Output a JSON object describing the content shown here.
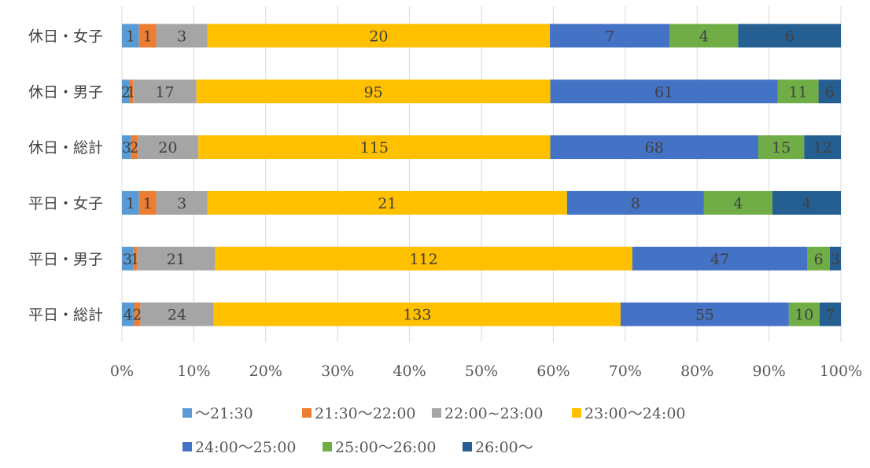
{
  "chart_data": {
    "type": "bar",
    "orientation": "horizontal",
    "stacked": "percent",
    "categories": [
      "休日・女子",
      "休日・男子",
      "休日・総計",
      "平日・女子",
      "平日・男子",
      "平日・総計"
    ],
    "series": [
      {
        "name": "～21:30",
        "color": "#5b9bd5",
        "values": [
          1,
          2,
          3,
          1,
          3,
          4
        ]
      },
      {
        "name": "21:30～22:00",
        "color": "#ed7d31",
        "values": [
          1,
          1,
          2,
          1,
          1,
          2
        ]
      },
      {
        "name": "22:00~23:00",
        "color": "#a5a5a5",
        "values": [
          3,
          17,
          20,
          3,
          21,
          24
        ]
      },
      {
        "name": "23:00～24:00",
        "color": "#ffc000",
        "values": [
          20,
          95,
          115,
          21,
          112,
          133
        ]
      },
      {
        "name": "24:00～25:00",
        "color": "#4472c4",
        "values": [
          7,
          61,
          68,
          8,
          47,
          55
        ]
      },
      {
        "name": "25:00～26:00",
        "color": "#70ad47",
        "values": [
          4,
          11,
          15,
          4,
          6,
          10
        ]
      },
      {
        "name": "26:00～",
        "color": "#255e91",
        "values": [
          6,
          6,
          12,
          4,
          3,
          7
        ]
      }
    ],
    "x_ticks": [
      "0%",
      "10%",
      "20%",
      "30%",
      "40%",
      "50%",
      "60%",
      "70%",
      "80%",
      "90%",
      "100%"
    ],
    "xlim": [
      0,
      100
    ],
    "grid": true,
    "legend_position": "bottom",
    "title": "",
    "xlabel": "",
    "ylabel": ""
  }
}
